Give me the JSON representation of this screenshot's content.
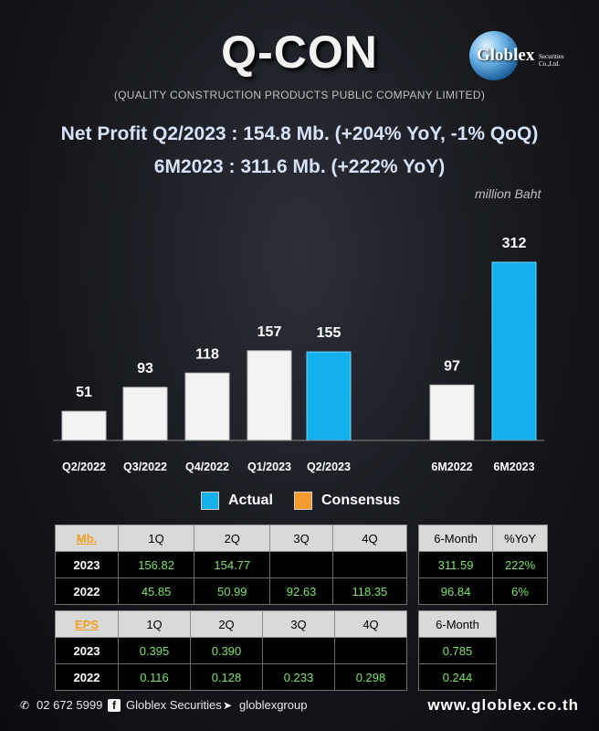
{
  "header": {
    "title": "Q-CON",
    "subtitle": "(QUALITY CONSTRUCTION PRODUCTS PUBLIC COMPANY LIMITED)",
    "logo": {
      "name": "Globlex",
      "sub": "Securities Co.,Ltd."
    }
  },
  "headline": {
    "line1": "Net Profit  Q2/2023 : 154.8 Mb. (+204% YoY, -1% QoQ)",
    "line2": "6M2023 : 311.6 Mb. (+222% YoY)"
  },
  "chart_data": {
    "type": "bar",
    "unit_label": "million Baht",
    "categories": [
      "Q2/2022",
      "Q3/2022",
      "Q4/2022",
      "Q1/2023",
      "Q2/2023",
      "6M2022",
      "6M2023"
    ],
    "values": [
      51,
      93,
      118,
      157,
      155,
      97,
      312
    ],
    "value_labels": [
      "51",
      "93",
      "118",
      "157",
      "155",
      "97",
      "312"
    ],
    "bar_kind": [
      "gray",
      "gray",
      "gray",
      "gray",
      "blue",
      "gray",
      "blue"
    ],
    "colors": {
      "gray": "#f2f2f2",
      "blue": "#12b0ec",
      "consensus": "#f59a2e"
    },
    "legend": [
      "Actual",
      "Consensus"
    ],
    "ylim": [
      0,
      312
    ],
    "grid": false
  },
  "mb_table": {
    "headers": [
      "Mb.",
      "1Q",
      "2Q",
      "3Q",
      "4Q"
    ],
    "rows": [
      {
        "year": "2023",
        "values": [
          "156.82",
          "154.77",
          "",
          ""
        ]
      },
      {
        "year": "2022",
        "values": [
          "45.85",
          "50.99",
          "92.63",
          "118.35"
        ]
      }
    ]
  },
  "mb_side_table": {
    "headers": [
      "6-Month",
      "%YoY"
    ],
    "rows": [
      [
        "311.59",
        "222%"
      ],
      [
        "96.84",
        "6%"
      ]
    ]
  },
  "eps_table": {
    "headers": [
      "EPS",
      "1Q",
      "2Q",
      "3Q",
      "4Q"
    ],
    "rows": [
      {
        "year": "2023",
        "values": [
          "0.395",
          "0.390",
          "",
          ""
        ]
      },
      {
        "year": "2022",
        "values": [
          "0.116",
          "0.128",
          "0.233",
          "0.298"
        ]
      }
    ]
  },
  "eps_side_table": {
    "headers": [
      "6-Month"
    ],
    "rows": [
      [
        "0.785"
      ],
      [
        "0.244"
      ]
    ]
  },
  "footer": {
    "phone": "02 672 5999",
    "facebook": "Globlex Securities",
    "telegram": "globlexgroup",
    "website": "www.globlex.co.th",
    "icons": [
      "phone-icon",
      "facebook-icon",
      "telegram-icon"
    ]
  }
}
